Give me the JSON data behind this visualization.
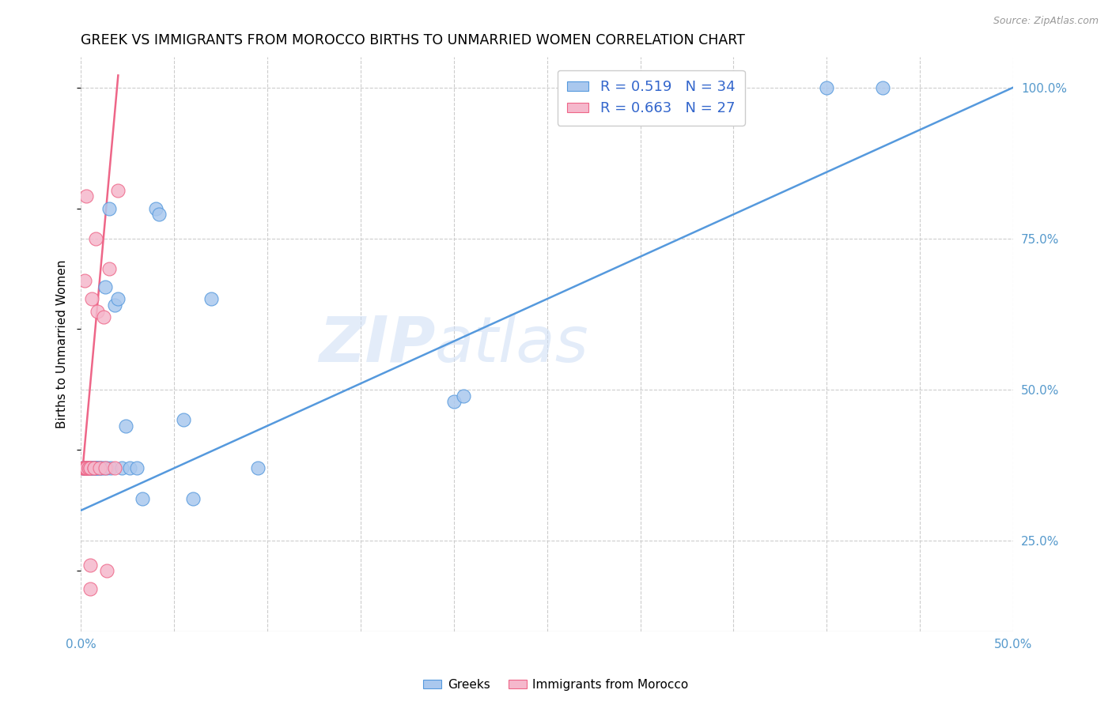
{
  "title": "GREEK VS IMMIGRANTS FROM MOROCCO BIRTHS TO UNMARRIED WOMEN CORRELATION CHART",
  "source": "Source: ZipAtlas.com",
  "ylabel": "Births to Unmarried Women",
  "xlabel": "",
  "xlim": [
    0.0,
    0.5
  ],
  "ylim": [
    0.1,
    1.05
  ],
  "xtick_major": [
    0.0,
    0.5
  ],
  "xtick_minor": [
    0.05,
    0.1,
    0.15,
    0.2,
    0.25,
    0.3,
    0.35,
    0.4,
    0.45
  ],
  "ytick_right": [
    0.25,
    0.5,
    0.75,
    1.0
  ],
  "ytick_labels": [
    "25.0%",
    "50.0%",
    "75.0%",
    "100.0%"
  ],
  "blue_color": "#aac8ee",
  "pink_color": "#f5b8cc",
  "line_blue": "#5599dd",
  "line_pink": "#ee6688",
  "watermark": "ZIPatlas",
  "blue_scatter": [
    [
      0.001,
      0.37
    ],
    [
      0.001,
      0.37
    ],
    [
      0.002,
      0.37
    ],
    [
      0.003,
      0.37
    ],
    [
      0.003,
      0.37
    ],
    [
      0.004,
      0.37
    ],
    [
      0.005,
      0.37
    ],
    [
      0.005,
      0.37
    ],
    [
      0.006,
      0.37
    ],
    [
      0.006,
      0.37
    ],
    [
      0.007,
      0.37
    ],
    [
      0.007,
      0.37
    ],
    [
      0.008,
      0.37
    ],
    [
      0.008,
      0.37
    ],
    [
      0.009,
      0.37
    ],
    [
      0.009,
      0.37
    ],
    [
      0.01,
      0.37
    ],
    [
      0.01,
      0.37
    ],
    [
      0.011,
      0.37
    ],
    [
      0.012,
      0.37
    ],
    [
      0.013,
      0.67
    ],
    [
      0.014,
      0.37
    ],
    [
      0.015,
      0.8
    ],
    [
      0.016,
      0.37
    ],
    [
      0.018,
      0.64
    ],
    [
      0.02,
      0.65
    ],
    [
      0.022,
      0.37
    ],
    [
      0.024,
      0.44
    ],
    [
      0.026,
      0.37
    ],
    [
      0.03,
      0.37
    ],
    [
      0.033,
      0.32
    ],
    [
      0.04,
      0.8
    ],
    [
      0.042,
      0.79
    ],
    [
      0.055,
      0.45
    ],
    [
      0.06,
      0.32
    ],
    [
      0.07,
      0.65
    ],
    [
      0.095,
      0.37
    ],
    [
      0.2,
      0.48
    ],
    [
      0.205,
      0.49
    ],
    [
      0.4,
      1.0
    ],
    [
      0.43,
      1.0
    ]
  ],
  "pink_scatter": [
    [
      0.001,
      0.37
    ],
    [
      0.001,
      0.37
    ],
    [
      0.002,
      0.37
    ],
    [
      0.002,
      0.37
    ],
    [
      0.003,
      0.37
    ],
    [
      0.003,
      0.37
    ],
    [
      0.003,
      0.37
    ],
    [
      0.004,
      0.37
    ],
    [
      0.004,
      0.37
    ],
    [
      0.005,
      0.37
    ],
    [
      0.005,
      0.37
    ],
    [
      0.006,
      0.65
    ],
    [
      0.007,
      0.37
    ],
    [
      0.007,
      0.37
    ],
    [
      0.008,
      0.75
    ],
    [
      0.009,
      0.63
    ],
    [
      0.01,
      0.37
    ],
    [
      0.012,
      0.62
    ],
    [
      0.013,
      0.37
    ],
    [
      0.015,
      0.7
    ],
    [
      0.018,
      0.37
    ],
    [
      0.02,
      0.83
    ],
    [
      0.003,
      0.82
    ],
    [
      0.002,
      0.68
    ],
    [
      0.005,
      0.21
    ],
    [
      0.014,
      0.2
    ],
    [
      0.005,
      0.17
    ]
  ],
  "blue_line_x": [
    0.0,
    0.5
  ],
  "blue_line_y": [
    0.3,
    1.0
  ],
  "pink_line_x": [
    0.001,
    0.02
  ],
  "pink_line_y": [
    0.37,
    1.02
  ]
}
